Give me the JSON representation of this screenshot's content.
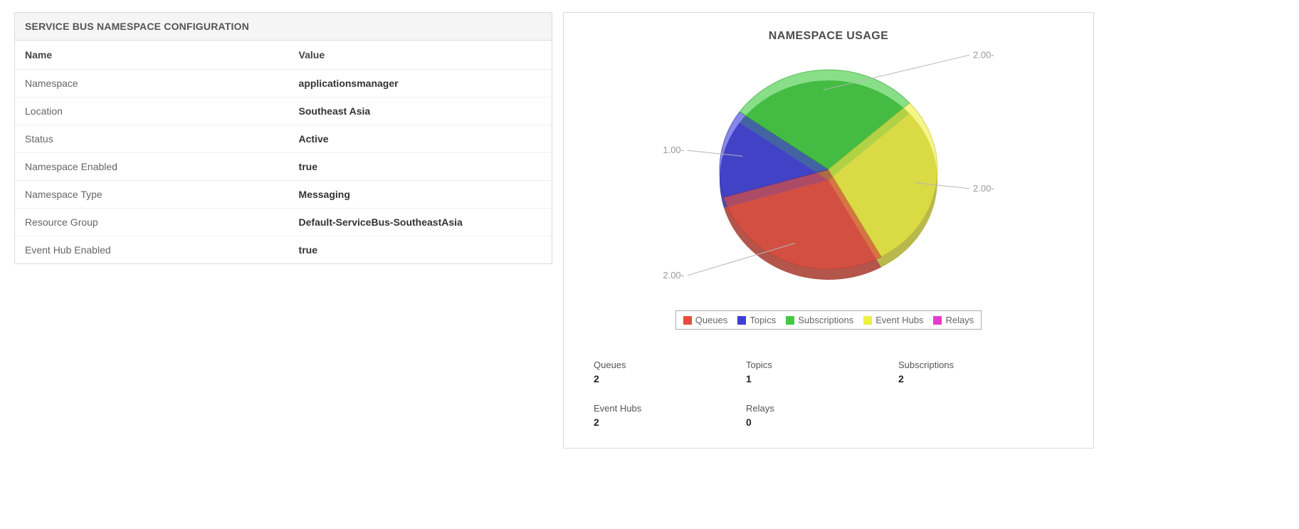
{
  "config_panel": {
    "title": "SERVICE BUS NAMESPACE CONFIGURATION",
    "columns": [
      "Name",
      "Value"
    ],
    "rows": [
      {
        "name": "Namespace",
        "value": "applicationsmanager"
      },
      {
        "name": "Location",
        "value": "Southeast Asia"
      },
      {
        "name": "Status",
        "value": "Active"
      },
      {
        "name": "Namespace Enabled",
        "value": "true"
      },
      {
        "name": "Namespace Type",
        "value": "Messaging"
      },
      {
        "name": "Resource Group",
        "value": "Default-ServiceBus-SoutheastAsia"
      },
      {
        "name": "Event Hub Enabled",
        "value": "true"
      }
    ]
  },
  "usage_panel": {
    "title": "NAMESPACE USAGE",
    "stats": [
      {
        "label": "Queues",
        "value": "2"
      },
      {
        "label": "Topics",
        "value": "1"
      },
      {
        "label": "Subscriptions",
        "value": "2"
      },
      {
        "label": "Event Hubs",
        "value": "2"
      },
      {
        "label": "Relays",
        "value": "0"
      }
    ]
  },
  "chart_data": {
    "type": "pie",
    "title": "NAMESPACE USAGE",
    "effect": "3d",
    "legend_position": "bottom",
    "start_angle_deg": 151,
    "series": [
      {
        "name": "Queues",
        "value": 2,
        "color": "#e74c3c",
        "label": "2.00-",
        "label_side": "left"
      },
      {
        "name": "Topics",
        "value": 1,
        "color": "#3d3dd8",
        "label": "1.00-",
        "label_side": "left"
      },
      {
        "name": "Subscriptions",
        "value": 2,
        "color": "#3fcc3f",
        "label": "2.00-",
        "label_side": "right"
      },
      {
        "name": "Event Hubs",
        "value": 2,
        "color": "#efef40",
        "label": "2.00-",
        "label_side": "right"
      },
      {
        "name": "Relays",
        "value": 0,
        "color": "#e839c8",
        "label": "",
        "label_side": "right"
      }
    ]
  }
}
